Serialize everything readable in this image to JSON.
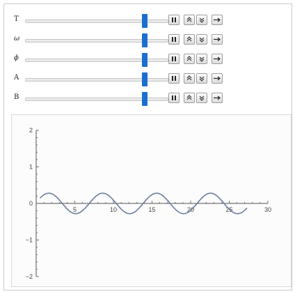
{
  "controls": [
    {
      "label": "T",
      "value": 0.84
    },
    {
      "label": "ω",
      "value": 0.84
    },
    {
      "label": "ϕ",
      "value": 0.84
    },
    {
      "label": "A",
      "value": 0.84
    },
    {
      "label": "B",
      "value": 0.84
    }
  ],
  "buttons": {
    "pause_icon": "pause-icon",
    "faster_icon": "faster-icon",
    "slower_icon": "slower-icon",
    "direction_icon": "direction-arrow-icon"
  },
  "colors": {
    "slider_thumb": "#1a6fd1",
    "curve": "#6a7d9c",
    "axis": "#555555"
  },
  "chart_data": {
    "type": "line",
    "title": "",
    "xlabel": "",
    "ylabel": "",
    "xlim": [
      -1,
      30
    ],
    "ylim": [
      -2,
      2
    ],
    "x_ticks": [
      5,
      10,
      15,
      20,
      25,
      30
    ],
    "y_ticks": [
      -2,
      -1,
      0,
      1,
      2
    ],
    "x_tick_labels": [
      "5",
      "10",
      "15",
      "20",
      "25",
      "30"
    ],
    "y_tick_labels": [
      "−2",
      "−1",
      "0",
      "1",
      "2"
    ],
    "series": [
      {
        "function": "A*sin(omega*x+phi)",
        "amplitude": 0.28,
        "omega": 0.9,
        "phi": 0.1,
        "x_range": [
          0.5,
          27.3
        ]
      }
    ]
  }
}
